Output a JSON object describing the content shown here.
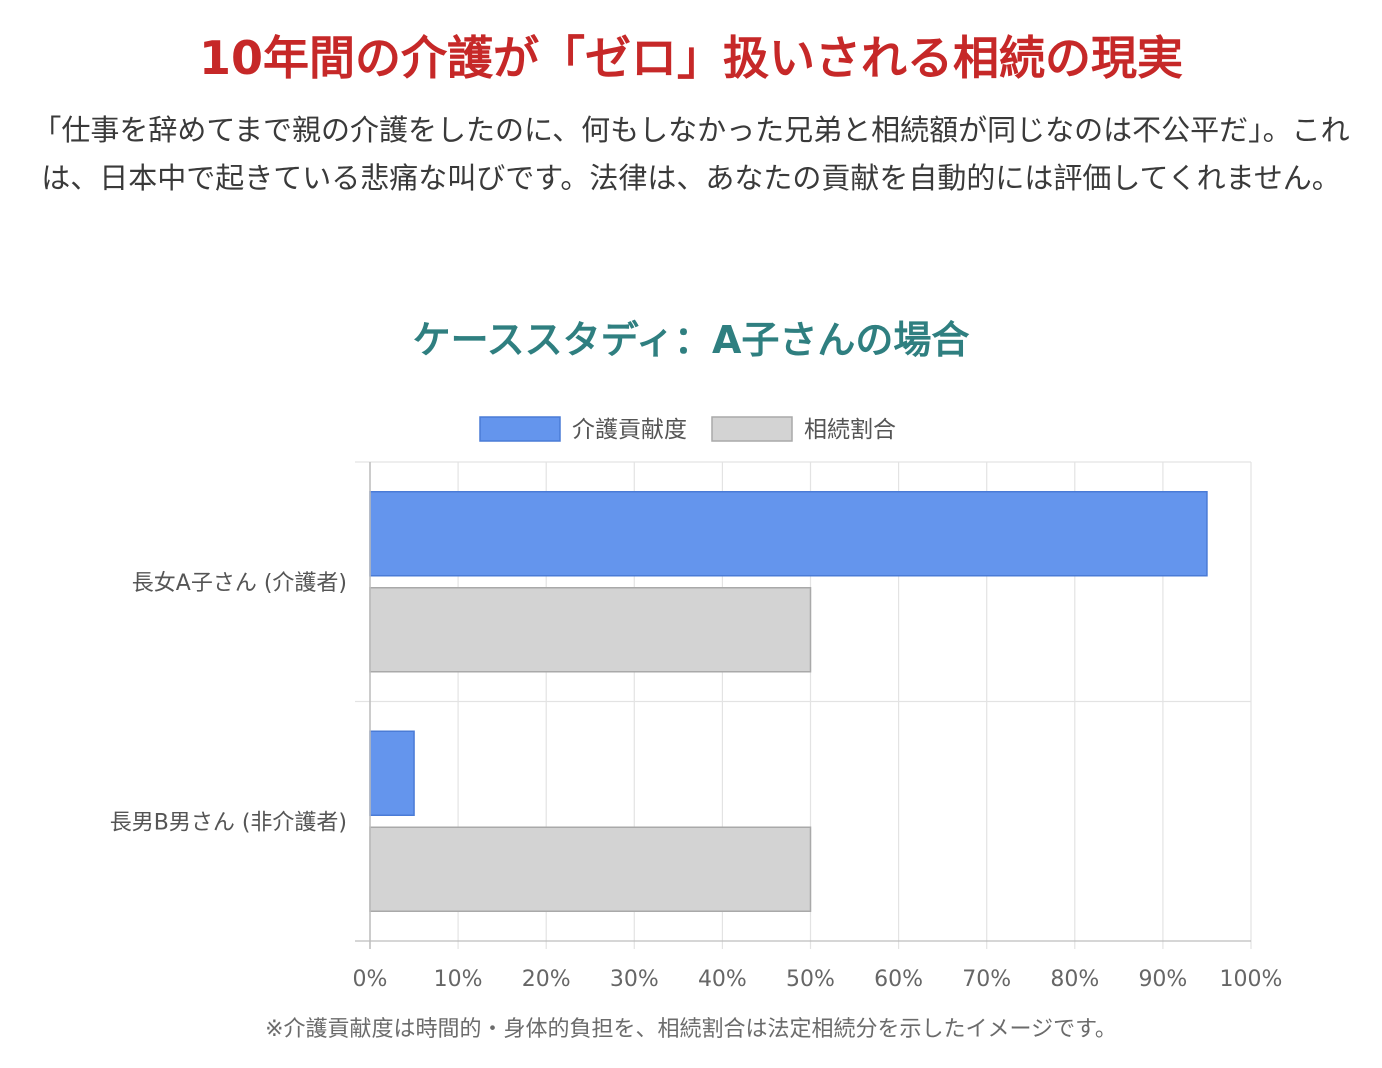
{
  "page": {
    "headline": "10年間の介護が「ゼロ」扱いされる相続の現実",
    "intro": "「仕事を辞めてまで親の介護をしたのに、何もしなかった兄弟と相続額が同じなのは不公平だ」。これは、日本中で起きている悲痛な叫びです。法律は、あなたの貢献を自動的には評価してくれません。",
    "case_title": "ケーススタディ：A子さんの場合",
    "footnote": "※介護貢献度は時間的・身体的負担を、相続割合は法定相続分を示したイメージです。"
  },
  "chart_data": {
    "type": "bar",
    "orientation": "horizontal",
    "categories": [
      "長女A子さん (介護者)",
      "長男B男さん (非介護者)"
    ],
    "series": [
      {
        "name": "介護貢献度",
        "values": [
          95,
          5
        ],
        "color": "#6495ed",
        "border": "#4a7bd6"
      },
      {
        "name": "相続割合",
        "values": [
          50,
          50
        ],
        "color": "#d3d3d3",
        "border": "#a9a9a9"
      }
    ],
    "xlim": [
      0,
      100
    ],
    "x_ticks": [
      0,
      10,
      20,
      30,
      40,
      50,
      60,
      70,
      80,
      90,
      100
    ],
    "tick_suffix": "%",
    "grid": true,
    "legend_position": "top"
  }
}
